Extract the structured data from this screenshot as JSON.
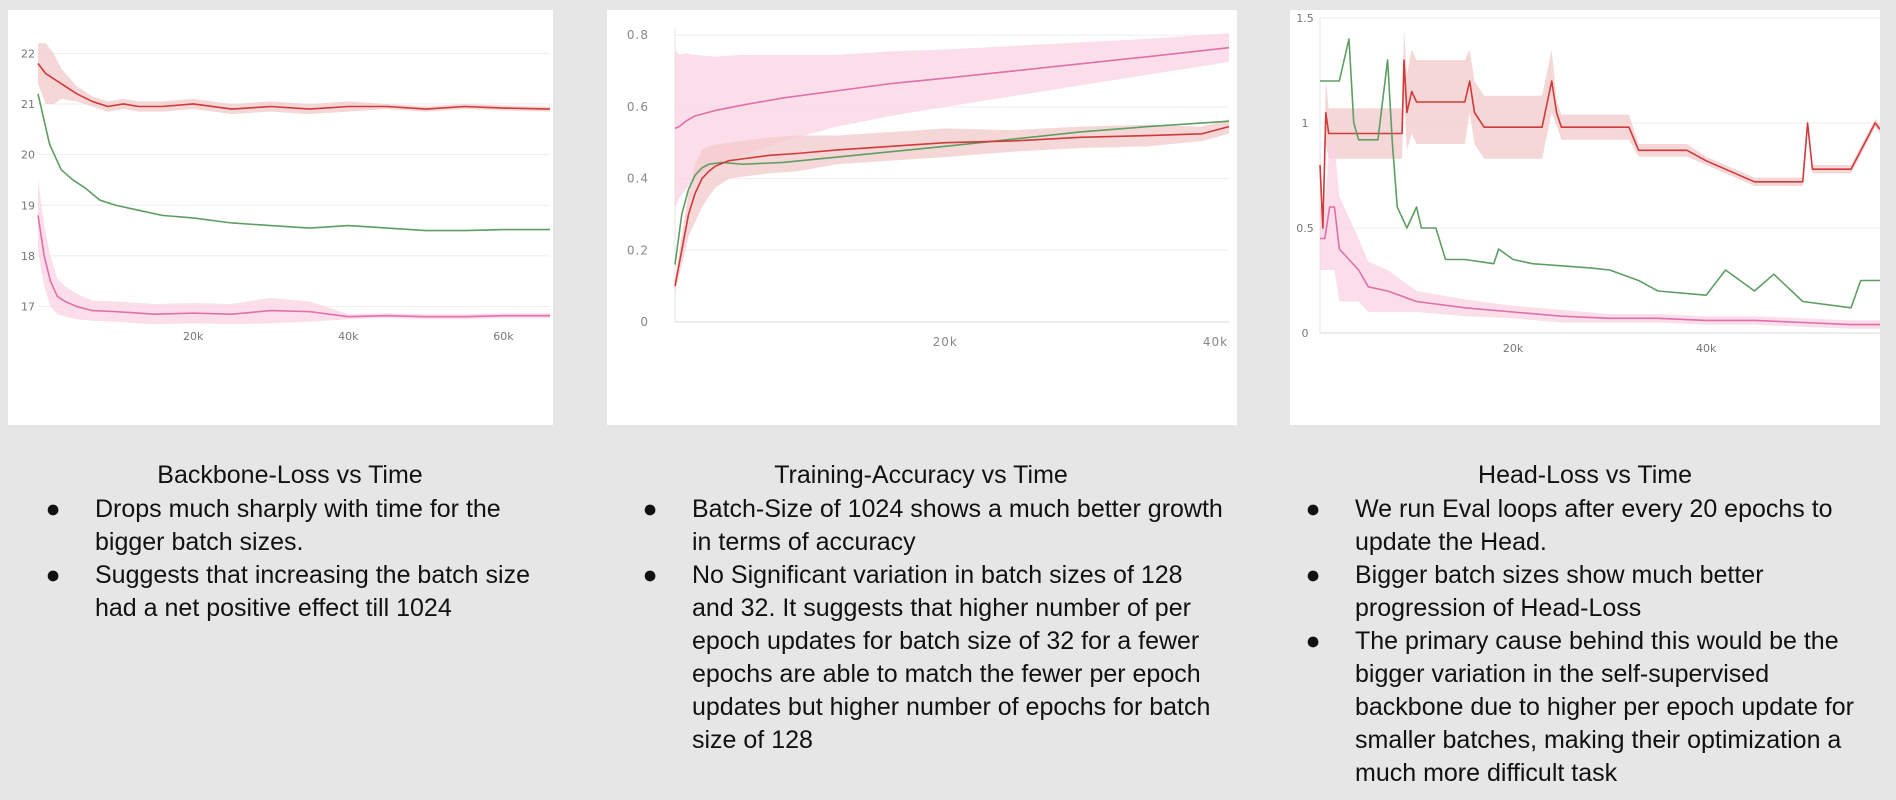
{
  "charts": [
    {
      "caption": "Backbone-Loss vs Time",
      "bullets": [
        "Drops much sharply with time for the bigger batch sizes.",
        "Suggests that increasing the batch size had a net positive effect till 1024"
      ]
    },
    {
      "caption": "Training-Accuracy vs Time",
      "bullets": [
        "Batch-Size of 1024 shows a much better growth in terms of accuracy",
        "No Significant variation in batch sizes of 128 and 32. It suggests that higher number of per epoch updates for batch size of 32 for a fewer epochs are able to match the fewer per epoch updates but higher number of epochs for batch size of 128"
      ]
    },
    {
      "caption": "Head-Loss vs Time",
      "bullets": [
        "We run Eval loops after every 20 epochs to update the Head.",
        "Bigger batch sizes show much better progression of Head-Loss",
        "The primary cause behind this would be the bigger variation in the self-supervised backbone due to higher per epoch update for smaller batches, making their optimization a much more difficult task"
      ]
    }
  ],
  "bullet_glyph": "●",
  "colors": {
    "red": "#d03a3a",
    "green": "#5e9e62",
    "pink": "#e070a8",
    "red_band": "#f3c9c9",
    "pink_band": "#f9d3e3"
  },
  "chart_data": [
    {
      "type": "line",
      "title": "",
      "xlim": [
        0,
        66000
      ],
      "ylim": [
        16.3,
        22.5
      ],
      "xticks": [
        {
          "v": 20000,
          "label": "20k"
        },
        {
          "v": 40000,
          "label": "40k"
        },
        {
          "v": 60000,
          "label": "60k"
        }
      ],
      "yticks": [
        {
          "v": 17,
          "label": "17"
        },
        {
          "v": 18,
          "label": "18"
        },
        {
          "v": 19,
          "label": "19"
        },
        {
          "v": 20,
          "label": "20"
        },
        {
          "v": 21,
          "label": "21"
        },
        {
          "v": 22,
          "label": "22"
        }
      ],
      "series": [
        {
          "color": "red",
          "band": "red",
          "x": [
            0,
            1000,
            2000,
            3000,
            5000,
            7000,
            9000,
            11000,
            13000,
            16000,
            20000,
            25000,
            30000,
            35000,
            40000,
            45000,
            50000,
            55000,
            60000,
            66000
          ],
          "y": [
            21.8,
            21.6,
            21.5,
            21.4,
            21.2,
            21.05,
            20.95,
            21.0,
            20.95,
            20.95,
            21.0,
            20.9,
            20.95,
            20.9,
            20.95,
            20.95,
            20.9,
            20.95,
            20.92,
            20.9
          ],
          "band_w": [
            0.4,
            0.6,
            0.5,
            0.3,
            0.15,
            0.1,
            0.1,
            0.1,
            0.1,
            0.1,
            0.1,
            0.1,
            0.1,
            0.1,
            0.1,
            0.05,
            0.05,
            0.05,
            0.05,
            0.05
          ]
        },
        {
          "color": "green",
          "x": [
            0,
            1500,
            3000,
            4500,
            6000,
            8000,
            10000,
            13000,
            16000,
            20000,
            25000,
            30000,
            35000,
            40000,
            45000,
            50000,
            55000,
            60000,
            66000
          ],
          "y": [
            21.2,
            20.2,
            19.7,
            19.5,
            19.35,
            19.1,
            19.0,
            18.9,
            18.8,
            18.75,
            18.65,
            18.6,
            18.55,
            18.6,
            18.55,
            18.5,
            18.5,
            18.52,
            18.52
          ]
        },
        {
          "color": "pink",
          "band": "pink",
          "x": [
            0,
            800,
            1600,
            2500,
            3500,
            5000,
            7000,
            10000,
            15000,
            20000,
            25000,
            30000,
            35000,
            40000,
            45000,
            50000,
            55000,
            60000,
            66000
          ],
          "y": [
            18.8,
            18.0,
            17.5,
            17.2,
            17.1,
            17.0,
            16.92,
            16.9,
            16.85,
            16.87,
            16.85,
            16.92,
            16.9,
            16.8,
            16.82,
            16.8,
            16.8,
            16.82,
            16.82
          ],
          "band_w": [
            0.7,
            0.6,
            0.5,
            0.35,
            0.3,
            0.25,
            0.2,
            0.2,
            0.2,
            0.2,
            0.2,
            0.25,
            0.2,
            0.05,
            0.05,
            0.05,
            0.05,
            0.05,
            0.05
          ]
        }
      ]
    },
    {
      "type": "line",
      "title": "",
      "xlim": [
        0,
        41000
      ],
      "ylim": [
        0,
        0.82
      ],
      "xticks": [
        {
          "v": 20000,
          "label": "20k"
        },
        {
          "v": 40000,
          "label": "40k"
        }
      ],
      "yticks": [
        {
          "v": 0,
          "label": "0"
        },
        {
          "v": 0.2,
          "label": "0.2"
        },
        {
          "v": 0.4,
          "label": "0.4"
        },
        {
          "v": 0.6,
          "label": "0.6"
        },
        {
          "v": 0.8,
          "label": "0.8"
        }
      ],
      "series": [
        {
          "color": "pink",
          "band": "pink",
          "x": [
            0,
            300,
            800,
            1500,
            3000,
            5000,
            8000,
            12000,
            16000,
            20000,
            25000,
            30000,
            35000,
            41000
          ],
          "y": [
            0.54,
            0.545,
            0.56,
            0.575,
            0.59,
            0.605,
            0.625,
            0.645,
            0.665,
            0.68,
            0.7,
            0.72,
            0.74,
            0.765
          ],
          "band_w": [
            0.22,
            0.2,
            0.19,
            0.17,
            0.15,
            0.14,
            0.12,
            0.1,
            0.09,
            0.08,
            0.07,
            0.06,
            0.05,
            0.04
          ]
        },
        {
          "color": "green",
          "x": [
            0,
            500,
            1000,
            1500,
            2000,
            2500,
            3500,
            5000,
            8000,
            12000,
            16000,
            20000,
            25000,
            30000,
            35000,
            41000
          ],
          "y": [
            0.16,
            0.3,
            0.37,
            0.41,
            0.43,
            0.44,
            0.445,
            0.44,
            0.445,
            0.46,
            0.475,
            0.49,
            0.51,
            0.53,
            0.545,
            0.56
          ]
        },
        {
          "color": "red",
          "band": "red",
          "x": [
            0,
            500,
            1000,
            1500,
            2000,
            2500,
            3000,
            4000,
            5000,
            7000,
            9000,
            12000,
            16000,
            20000,
            25000,
            30000,
            35000,
            39000,
            41000
          ],
          "y": [
            0.1,
            0.2,
            0.3,
            0.36,
            0.4,
            0.42,
            0.435,
            0.45,
            0.455,
            0.465,
            0.47,
            0.48,
            0.49,
            0.5,
            0.505,
            0.515,
            0.52,
            0.525,
            0.545
          ],
          "band_w": [
            0.02,
            0.04,
            0.06,
            0.08,
            0.08,
            0.07,
            0.06,
            0.05,
            0.05,
            0.05,
            0.05,
            0.04,
            0.04,
            0.04,
            0.03,
            0.03,
            0.03,
            0.02,
            0.02
          ]
        }
      ]
    },
    {
      "type": "line",
      "title": "",
      "xlim": [
        0,
        58000
      ],
      "ylim": [
        0,
        1.5
      ],
      "xticks": [
        {
          "v": 20000,
          "label": "20k"
        },
        {
          "v": 40000,
          "label": "40k"
        }
      ],
      "yticks": [
        {
          "v": 0,
          "label": "0"
        },
        {
          "v": 0.5,
          "label": "0.5"
        },
        {
          "v": 1,
          "label": "1"
        },
        {
          "v": 1.5,
          "label": "1.5"
        }
      ],
      "series": [
        {
          "color": "red",
          "band": "red",
          "x": [
            0,
            300,
            600,
            900,
            1500,
            3000,
            6000,
            8500,
            8700,
            9000,
            9500,
            10000,
            10300,
            12000,
            15000,
            15500,
            16000,
            17000,
            20000,
            23000,
            24000,
            24500,
            25000,
            28000,
            30000,
            32000,
            33000,
            36000,
            38000,
            40000,
            45000,
            48000,
            50000,
            50500,
            51000,
            55000,
            57500,
            58000
          ],
          "y": [
            0.8,
            0.5,
            1.05,
            0.95,
            0.95,
            0.95,
            0.95,
            0.95,
            1.3,
            1.05,
            1.15,
            1.1,
            1.1,
            1.1,
            1.1,
            1.2,
            1.05,
            0.98,
            0.98,
            0.98,
            1.2,
            1.05,
            0.98,
            0.98,
            0.98,
            0.98,
            0.87,
            0.87,
            0.87,
            0.82,
            0.72,
            0.72,
            0.72,
            1.0,
            0.78,
            0.78,
            1.0,
            0.97
          ],
          "band_w": [
            0.05,
            0.05,
            0.15,
            0.12,
            0.12,
            0.12,
            0.12,
            0.12,
            0.15,
            0.18,
            0.2,
            0.2,
            0.2,
            0.2,
            0.2,
            0.15,
            0.15,
            0.15,
            0.15,
            0.15,
            0.15,
            0.06,
            0.06,
            0.06,
            0.06,
            0.06,
            0.03,
            0.03,
            0.03,
            0.02,
            0.02,
            0.02,
            0.02,
            0.02,
            0.02,
            0.02,
            0.02,
            0.02
          ]
        },
        {
          "color": "green",
          "x": [
            0,
            500,
            1000,
            2000,
            3000,
            3500,
            4000,
            5000,
            6000,
            7000,
            7500,
            8000,
            9000,
            10000,
            10500,
            12000,
            13000,
            15000,
            18000,
            18500,
            20000,
            22000,
            25000,
            28000,
            30000,
            33000,
            35000,
            40000,
            42000,
            45000,
            47000,
            50000,
            55000,
            56000,
            58000
          ],
          "y": [
            1.2,
            1.2,
            1.2,
            1.2,
            1.4,
            1.0,
            0.92,
            0.92,
            0.92,
            1.3,
            0.9,
            0.6,
            0.5,
            0.6,
            0.5,
            0.5,
            0.35,
            0.35,
            0.33,
            0.4,
            0.35,
            0.33,
            0.32,
            0.31,
            0.3,
            0.25,
            0.2,
            0.18,
            0.3,
            0.2,
            0.28,
            0.15,
            0.12,
            0.25,
            0.25
          ]
        },
        {
          "color": "pink",
          "band": "pink",
          "x": [
            0,
            500,
            1000,
            1500,
            2000,
            3000,
            4000,
            5000,
            7000,
            10000,
            15000,
            20000,
            25000,
            30000,
            35000,
            40000,
            45000,
            50000,
            55000,
            58000
          ],
          "y": [
            0.45,
            0.45,
            0.6,
            0.6,
            0.4,
            0.35,
            0.3,
            0.22,
            0.2,
            0.15,
            0.12,
            0.1,
            0.08,
            0.07,
            0.07,
            0.06,
            0.06,
            0.05,
            0.04,
            0.04
          ],
          "band_w": [
            0.15,
            0.15,
            0.3,
            0.3,
            0.25,
            0.2,
            0.15,
            0.12,
            0.1,
            0.05,
            0.04,
            0.03,
            0.03,
            0.02,
            0.02,
            0.02,
            0.02,
            0.02,
            0.02,
            0.02
          ]
        }
      ]
    }
  ]
}
